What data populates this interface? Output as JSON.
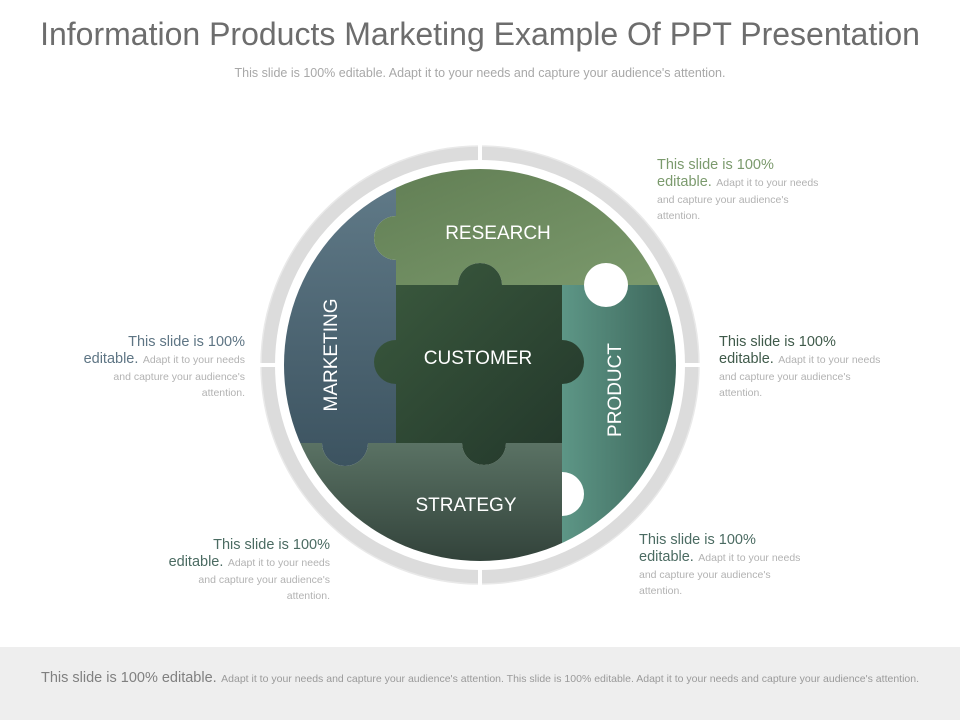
{
  "header": {
    "title": "Information Products Marketing Example Of PPT Presentation",
    "subtitle": "This slide is 100% editable. Adapt it to your needs and capture your audience's attention."
  },
  "diagram": {
    "pieces": {
      "research": "RESEARCH",
      "customer": "CUSTOMER",
      "marketing": "MARKETING",
      "product": "PRODUCT",
      "strategy": "STRATEGY"
    },
    "colors": {
      "research": "#6e8c5f",
      "customer": "#2f4a33",
      "marketing": "#556e7c",
      "product": "#4a7f73",
      "strategy": "#42574c",
      "ring": "#dcdcdc"
    }
  },
  "callouts": [
    {
      "lead": "This slide is 100% editable.",
      "body": "Adapt it to your needs and capture your audience's attention.",
      "color": "#7b9a6d"
    },
    {
      "lead": "This slide is 100% editable.",
      "body": "Adapt it to your needs and capture your audience's attention.",
      "color": "#3f5a4a"
    },
    {
      "lead": "This slide is 100% editable.",
      "body": "Adapt it to your needs and capture your audience's attention.",
      "color": "#4b6b62"
    },
    {
      "lead": "This slide is 100% editable.",
      "body": "Adapt it to your needs and capture your audience's attention.",
      "color": "#5e7584"
    },
    {
      "lead": "This slide is 100% editable.",
      "body": "Adapt it to your needs and capture your audience's attention.",
      "color": "#4b6b62"
    }
  ],
  "footer": {
    "lead": "This slide is 100% editable.",
    "body": "Adapt it to your needs and capture your audience's attention. This slide is 100% editable. Adapt it to your needs and capture your audience's attention."
  }
}
